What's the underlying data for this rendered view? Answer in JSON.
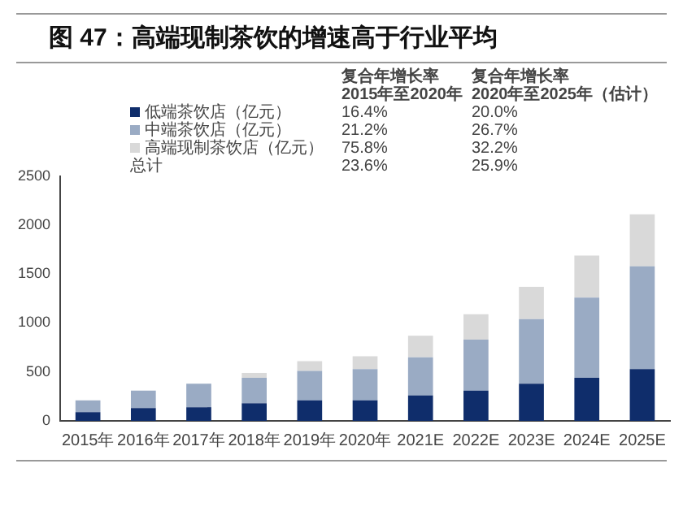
{
  "chart_data": {
    "type": "bar",
    "title": "图 47：高端现制茶饮的增速高于行业平均",
    "stacked": true,
    "legend": "top",
    "categories": [
      "2015年",
      "2016年",
      "2017年",
      "2018年",
      "2019年",
      "2020年",
      "2021E",
      "2022E",
      "2023E",
      "2024E",
      "2025E"
    ],
    "series": [
      {
        "name": "低端茶饮店（亿元）",
        "color": "#0f2d6b",
        "values": [
          90,
          130,
          140,
          180,
          210,
          210,
          260,
          310,
          380,
          440,
          530
        ]
      },
      {
        "name": "中端茶饮店（亿元）",
        "color": "#9aabc4",
        "values": [
          120,
          180,
          240,
          260,
          300,
          320,
          390,
          520,
          660,
          820,
          1050
        ]
      },
      {
        "name": "高端现制茶饮店（亿元）",
        "color": "#d9d9d9",
        "values": [
          null,
          null,
          null,
          50,
          100,
          130,
          220,
          260,
          330,
          430,
          530
        ]
      }
    ],
    "annotations": [
      "复合年增长率\n2015年至2020年",
      "复合年增长率\n2020年至2025年（估计）",
      "16.4%",
      "21.2%",
      "75.8%",
      "23.6%",
      "20.0%",
      "26.7%",
      "32.2%",
      "25.9%",
      "总计"
    ],
    "ylim": [
      0,
      2500
    ],
    "yticks": [
      0,
      500,
      1000,
      1500,
      2000,
      2500
    ],
    "grid": false
  }
}
